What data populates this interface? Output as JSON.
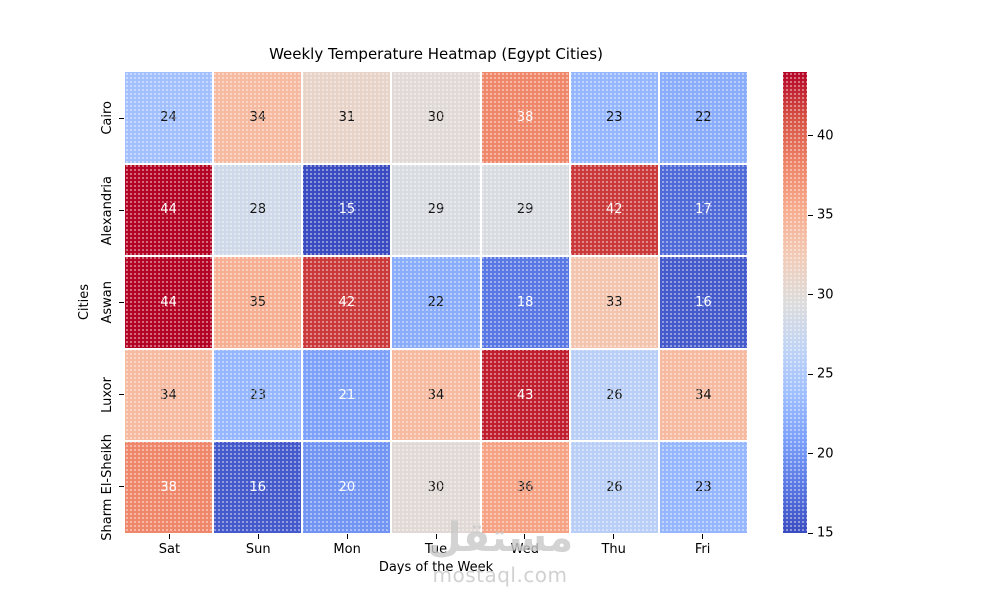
{
  "figure": {
    "background": "#ffffff",
    "watermark": {
      "brand_text": "مستقل",
      "domain_text": "mostaql.com",
      "color": "#c9c9c9"
    }
  },
  "chart_data": {
    "type": "heatmap",
    "title": "Weekly Temperature Heatmap (Egypt Cities)",
    "xlabel": "Days of the Week",
    "ylabel": "Cities",
    "x_categories": [
      "Sat",
      "Sun",
      "Mon",
      "Tue",
      "Wed",
      "Thu",
      "Fri"
    ],
    "y_categories": [
      "Cairo",
      "Alexandria",
      "Aswan",
      "Luxor",
      "Sharm El-Sheikh"
    ],
    "values": [
      [
        24,
        34,
        31,
        30,
        38,
        23,
        22
      ],
      [
        44,
        28,
        15,
        29,
        29,
        42,
        17
      ],
      [
        44,
        35,
        42,
        22,
        18,
        33,
        16
      ],
      [
        34,
        23,
        21,
        34,
        43,
        26,
        34
      ],
      [
        38,
        16,
        20,
        30,
        36,
        26,
        23
      ]
    ],
    "vmin": 15,
    "vmax": 44,
    "colorbar_ticks": [
      40,
      35,
      30,
      25,
      20,
      15
    ],
    "legend_position": "right-colorbar",
    "grid": false,
    "colormap": {
      "name": "coolwarm",
      "anchors": [
        "#3b4cc0",
        "#5977e3",
        "#7b9ff9",
        "#9ebeff",
        "#c0d4f5",
        "#dddcdc",
        "#f2cbb7",
        "#f7ac8e",
        "#ee8468",
        "#d65244",
        "#b40426"
      ]
    },
    "annotation_colors": {
      "dark": "#141414",
      "light": "#ffffff",
      "white_text_low_max": 21,
      "white_text_high_min": 38
    }
  }
}
